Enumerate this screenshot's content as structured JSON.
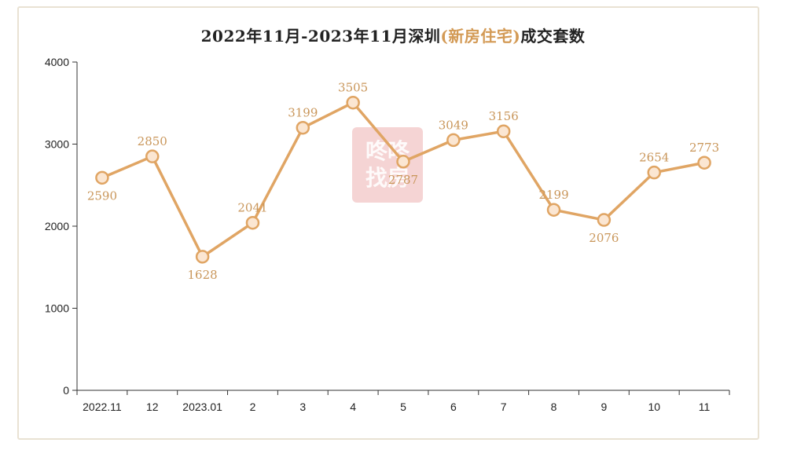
{
  "chart_data": {
    "type": "line",
    "title_prefix": "2022年11月-2023年11月深圳",
    "title_highlight": "(新房住宅)",
    "title_suffix": "成交套数",
    "categories": [
      "2022.11",
      "12",
      "2023.01",
      "2",
      "3",
      "4",
      "5",
      "6",
      "7",
      "8",
      "9",
      "10",
      "11"
    ],
    "series": [
      {
        "values": [
          2590,
          2850,
          1628,
          2041,
          3199,
          3505,
          2787,
          3049,
          3156,
          2199,
          2076,
          2654,
          2773
        ]
      }
    ],
    "ylim": [
      0,
      4000
    ],
    "yticks": [
      0,
      1000,
      2000,
      3000,
      4000
    ],
    "grid": false,
    "legend": "none",
    "colors": {
      "line": "#e0a564",
      "marker_fill": "#fbe6d2",
      "label": "#c9965a"
    }
  },
  "watermark": {
    "text": "咚咚找房"
  }
}
